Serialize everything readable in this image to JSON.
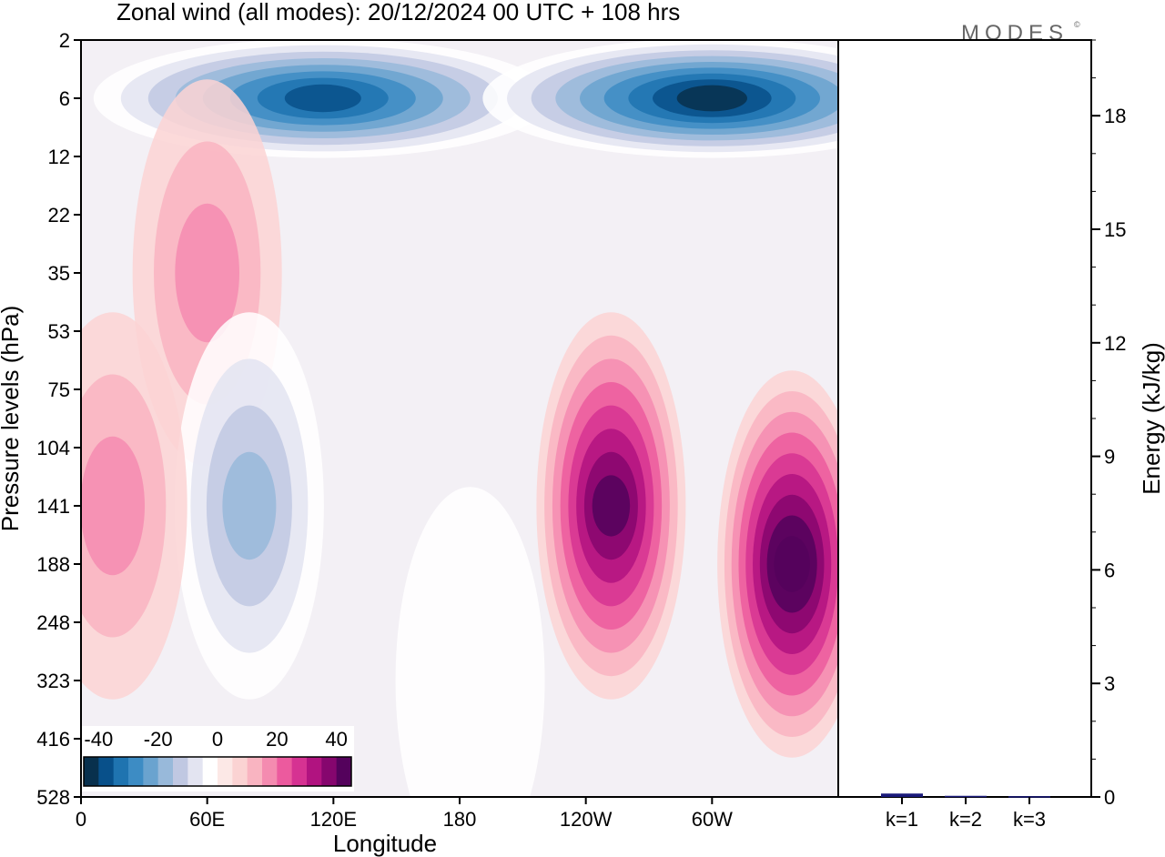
{
  "title": "Zonal wind (all modes):  20/12/2024  00 UTC  + 108 hrs",
  "logo": "MODES",
  "logo_mark": "©",
  "chart_data": [
    {
      "type": "heatmap",
      "title": "Zonal wind (all modes):  20/12/2024  00 UTC  + 108 hrs",
      "xlabel": "Longitude",
      "ylabel": "Pressure levels (hPa)",
      "x_ticks": [
        "0",
        "60E",
        "120E",
        "180",
        "120W",
        "60W"
      ],
      "x_tick_lon": [
        0,
        60,
        120,
        180,
        240,
        300
      ],
      "xlim": [
        0,
        360
      ],
      "y_ticks": [
        "2",
        "6",
        "12",
        "22",
        "35",
        "53",
        "75",
        "104",
        "141",
        "188",
        "248",
        "323",
        "416",
        "528"
      ],
      "colorbar": {
        "tick_labels": [
          "-40",
          "-20",
          "0",
          "20",
          "40"
        ],
        "tick_values": [
          -40,
          -20,
          0,
          20,
          40
        ],
        "range": [
          -45,
          45
        ],
        "colors": [
          "#08304d",
          "#08508a",
          "#1f74b0",
          "#3d8cc4",
          "#6aa3cf",
          "#98b9da",
          "#c0c8e2",
          "#e3e4f1",
          "#ffffff",
          "#fce8e6",
          "#fbd3d3",
          "#f9b4c1",
          "#f48bb0",
          "#ec5a9e",
          "#d63292",
          "#b11380",
          "#86066e",
          "#54025c"
        ]
      },
      "features": [
        {
          "lon": 115,
          "level": "6",
          "value": -42
        },
        {
          "lon": 300,
          "level": "6",
          "value": -45
        },
        {
          "lon": 60,
          "level": "35",
          "value": 14
        },
        {
          "lon": 80,
          "level": "141",
          "value": -18
        },
        {
          "lon": 15,
          "level": "141",
          "value": 15
        },
        {
          "lon": 252,
          "level": "141",
          "value": 38
        },
        {
          "lon": 338,
          "level": "188",
          "value": 44
        },
        {
          "lon": 185,
          "level": "323",
          "value": -6
        }
      ]
    },
    {
      "type": "bar",
      "ylabel": "Energy (kJ/kg)",
      "categories": [
        "k=1",
        "k=2",
        "k=3"
      ],
      "values": [
        0.09,
        0.03,
        0.02
      ],
      "ylim": [
        0,
        20
      ],
      "y_ticks": [
        "0",
        "3",
        "6",
        "9",
        "12",
        "15",
        "18"
      ],
      "y_tick_values": [
        0,
        3,
        6,
        9,
        12,
        15,
        18
      ],
      "bar_color": "#1a1a7a"
    }
  ]
}
